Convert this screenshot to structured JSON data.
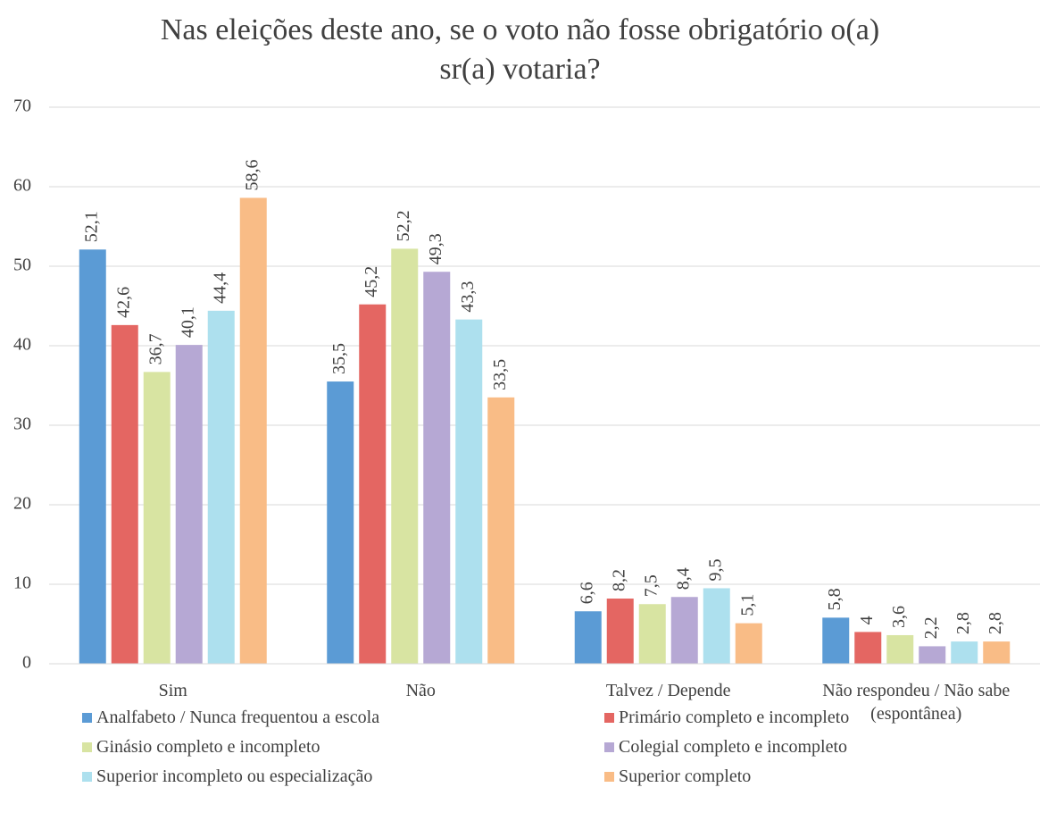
{
  "chart_data": {
    "type": "bar",
    "title": "Nas eleições deste ano, se o voto não fosse obrigatório o(a)\nsr(a) votaria?",
    "categories": [
      "Sim",
      "Não",
      "Talvez / Depende",
      "Não respondeu / Não sabe\n(espontânea)"
    ],
    "series": [
      {
        "name": "Analfabeto / Nunca frequentou a escola",
        "color": "#5b9bd5",
        "values": [
          52.1,
          35.5,
          6.6,
          5.8
        ],
        "value_labels": [
          "52,1",
          "35,5",
          "6,6",
          "5,8"
        ]
      },
      {
        "name": "Primário completo e incompleto",
        "color": "#e46662",
        "values": [
          42.6,
          45.2,
          8.2,
          4
        ],
        "value_labels": [
          "42,6",
          "45,2",
          "8,2",
          "4"
        ]
      },
      {
        "name": "Ginásio completo e incompleto",
        "color": "#d8e4a2",
        "values": [
          36.7,
          52.2,
          7.5,
          3.6
        ],
        "value_labels": [
          "36,7",
          "52,2",
          "7,5",
          "3,6"
        ]
      },
      {
        "name": "Colegial completo e incompleto",
        "color": "#b6a8d4",
        "values": [
          40.1,
          49.3,
          8.4,
          2.2
        ],
        "value_labels": [
          "40,1",
          "49,3",
          "8,4",
          "2,2"
        ]
      },
      {
        "name": "Superior incompleto ou especialização",
        "color": "#ade0ee",
        "values": [
          44.4,
          43.3,
          9.5,
          2.8
        ],
        "value_labels": [
          "44,4",
          "43,3",
          "9,5",
          "2,8"
        ]
      },
      {
        "name": "Superior completo",
        "color": "#f9bc86",
        "values": [
          58.6,
          33.5,
          5.1,
          2.8
        ],
        "value_labels": [
          "58,6",
          "33,5",
          "5,1",
          "2,8"
        ]
      }
    ],
    "ylim": [
      0,
      70
    ],
    "yticks": [
      0,
      10,
      20,
      30,
      40,
      50,
      60,
      70
    ],
    "grid": true,
    "legend": "bottom"
  }
}
